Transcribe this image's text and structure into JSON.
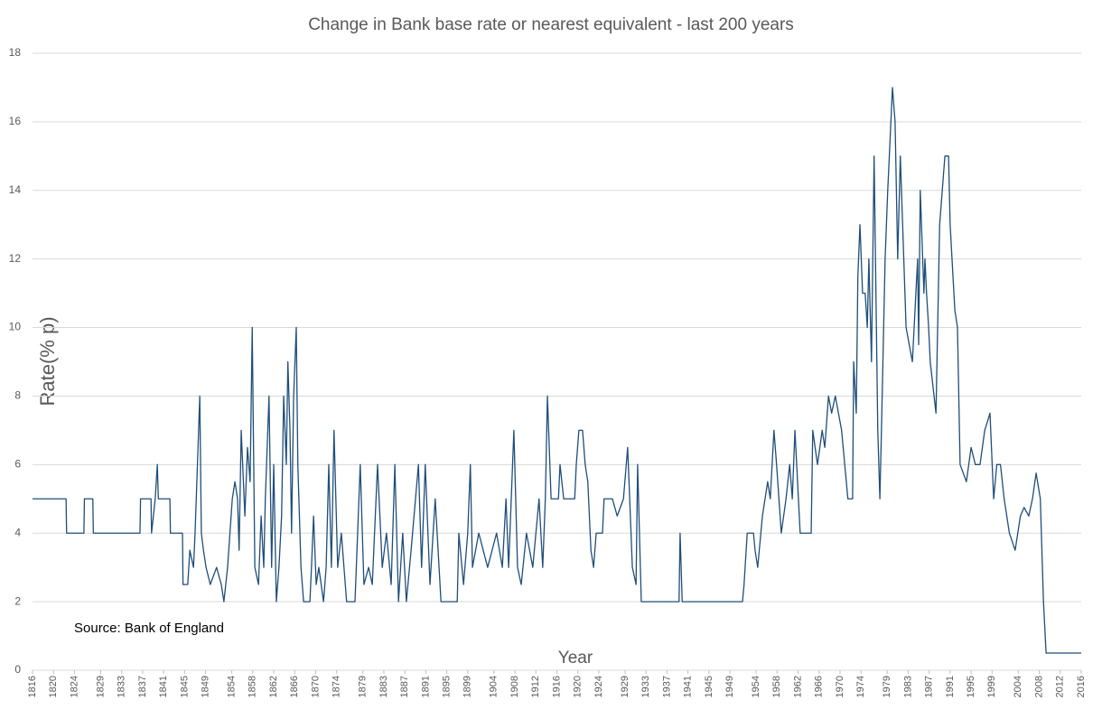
{
  "chart_data": {
    "type": "line",
    "title": "Change in Bank base rate or nearest equivalent - last 200 years",
    "y_label": "Rate(% p)",
    "x_label": "Year",
    "annotation": "Source: Bank of England",
    "color": "#1f4e79",
    "grid": true,
    "xlim": [
      1816,
      2016
    ],
    "ylim": [
      0,
      18
    ],
    "yticks": [
      0,
      2,
      4,
      6,
      8,
      10,
      12,
      14,
      16,
      18
    ],
    "xticks": [
      1816,
      1820,
      1824,
      1829,
      1833,
      1837,
      1841,
      1845,
      1849,
      1854,
      1858,
      1862,
      1866,
      1870,
      1874,
      1879,
      1883,
      1887,
      1891,
      1895,
      1899,
      1904,
      1908,
      1912,
      1916,
      1920,
      1924,
      1929,
      1933,
      1937,
      1941,
      1945,
      1949,
      1954,
      1958,
      1962,
      1966,
      1970,
      1974,
      1979,
      1983,
      1987,
      1991,
      1995,
      1999,
      2004,
      2008,
      2012,
      2016
    ],
    "x": [
      1816,
      1822.4,
      1822.5,
      1825.8,
      1825.9,
      1827.5,
      1827.6,
      1836.5,
      1836.6,
      1838.6,
      1838.7,
      1839.4,
      1839.8,
      1840.0,
      1842.2,
      1842.3,
      1844.6,
      1844.7,
      1845.6,
      1846,
      1846.7,
      1847,
      1847.9,
      1848.2,
      1848.6,
      1849.1,
      1849.9,
      1851.1,
      1852,
      1852.5,
      1853.2,
      1854.1,
      1854.6,
      1855.1,
      1855.4,
      1855.8,
      1856.5,
      1857,
      1857.5,
      1857.9,
      1858.4,
      1859.1,
      1859.6,
      1860.1,
      1860.4,
      1861.1,
      1861.6,
      1862,
      1862.5,
      1863,
      1863.5,
      1863.9,
      1864.4,
      1864.7,
      1865.1,
      1865.4,
      1865.8,
      1866.3,
      1866.6,
      1867.2,
      1867.7,
      1868.9,
      1869.2,
      1869.6,
      1870.1,
      1870.6,
      1871.5,
      1872,
      1872.5,
      1873,
      1873.5,
      1874.2,
      1874.9,
      1875.9,
      1877.5,
      1878.5,
      1879.2,
      1880.1,
      1880.8,
      1881.8,
      1882.7,
      1883.5,
      1884.4,
      1885.1,
      1885.8,
      1886.6,
      1887.3,
      1888.2,
      1889.6,
      1890.2,
      1890.9,
      1891.8,
      1892.8,
      1893.9,
      1897,
      1897.3,
      1898.2,
      1899,
      1899.5,
      1899.9,
      1901.1,
      1902.8,
      1904.5,
      1905.6,
      1906.3,
      1906.8,
      1907.8,
      1908.5,
      1909.2,
      1910.2,
      1911.4,
      1912.6,
      1913.3,
      1913.8,
      1914.2,
      1914.9,
      1916.3,
      1916.6,
      1917.3,
      1919.4,
      1919.7,
      1920.2,
      1920.9,
      1921.4,
      1921.9,
      1922.5,
      1923,
      1923.5,
      1924.7,
      1925,
      1926.6,
      1927.5,
      1928.7,
      1929.5,
      1930.4,
      1931.1,
      1931.4,
      1932.1,
      1939.3,
      1939.5,
      1939.9,
      1951.4,
      1951.7,
      1952.3,
      1953.5,
      1953.8,
      1954.3,
      1955.2,
      1956.2,
      1956.7,
      1957.4,
      1957.9,
      1958.8,
      1959.7,
      1960.4,
      1960.9,
      1961.4,
      1962.4,
      1964.5,
      1964.8,
      1965.7,
      1966.6,
      1967.1,
      1967.8,
      1968.4,
      1969.1,
      1970.3,
      1971.5,
      1972.4,
      1972.6,
      1973.1,
      1973.4,
      1973.8,
      1974.3,
      1974.8,
      1975.2,
      1975.5,
      1976,
      1976.5,
      1977.2,
      1977.6,
      1977.9,
      1978.6,
      1979.1,
      1980,
      1980.5,
      1981,
      1981.5,
      1982.6,
      1983.8,
      1984.8,
      1985,
      1985.3,
      1986,
      1986.2,
      1986.5,
      1986.9,
      1987.2,
      1988.3,
      1989,
      1989.5,
      1990,
      1990.7,
      1991,
      1991.9,
      1992.4,
      1992.9,
      1994.1,
      1995,
      1995.8,
      1996.7,
      1997.6,
      1998.6,
      1999.3,
      1999.9,
      2000.6,
      2001.3,
      2002.3,
      2003.4,
      2004.4,
      2005.1,
      2006,
      2006.7,
      2007.4,
      2008.2,
      2008.8,
      2009.3,
      2016
    ],
    "values": [
      5,
      5,
      4,
      4,
      5,
      5,
      4,
      4,
      5,
      5,
      4,
      5,
      6,
      5,
      5,
      4,
      4,
      2.5,
      2.5,
      3.5,
      3,
      4,
      8,
      4,
      3.5,
      3,
      2.5,
      3,
      2.5,
      2,
      3,
      5,
      5.5,
      5,
      3.5,
      7,
      4.5,
      6.5,
      5.5,
      10,
      3,
      2.5,
      4.5,
      3,
      5,
      8,
      3,
      6,
      2,
      3,
      4.5,
      8,
      6,
      9,
      7,
      4,
      8,
      10,
      6,
      3,
      2,
      2,
      3,
      4.5,
      2.5,
      3,
      2,
      3,
      6,
      3,
      7,
      3,
      4,
      2,
      2,
      6,
      2.5,
      3,
      2.5,
      6,
      3,
      4,
      2.5,
      6,
      2,
      4,
      2,
      3.5,
      6,
      3,
      6,
      2.5,
      5,
      2,
      2,
      4,
      2.5,
      4,
      6,
      3,
      4,
      3,
      4,
      3,
      5,
      3,
      7,
      3,
      2.5,
      4,
      3,
      5,
      3,
      5,
      8,
      5,
      5,
      6,
      5,
      5,
      6,
      7,
      7,
      6,
      5.5,
      3.5,
      3,
      4,
      4,
      5,
      5,
      4.5,
      5,
      6.5,
      3,
      2.5,
      6,
      2,
      2,
      4,
      2,
      2,
      2.5,
      4,
      4,
      3.5,
      3,
      4.5,
      5.5,
      5,
      7,
      6,
      4,
      5,
      6,
      5,
      7,
      4,
      4,
      7,
      6,
      7,
      6.5,
      8,
      7.5,
      8,
      7,
      5,
      5,
      9,
      7.5,
      11.5,
      13,
      11,
      11,
      10,
      12,
      9,
      15,
      7,
      5,
      7,
      12,
      14,
      17,
      16,
      12,
      15,
      10,
      9,
      12,
      9.5,
      14,
      11,
      12,
      11,
      10,
      9,
      7.5,
      13,
      14,
      15,
      15,
      13,
      10.5,
      10,
      6,
      5.5,
      6.5,
      6,
      6,
      7,
      7.5,
      5,
      6,
      6,
      5,
      4,
      3.5,
      4.5,
      4.75,
      4.5,
      5,
      5.75,
      5,
      2,
      0.5,
      0.5
    ]
  }
}
